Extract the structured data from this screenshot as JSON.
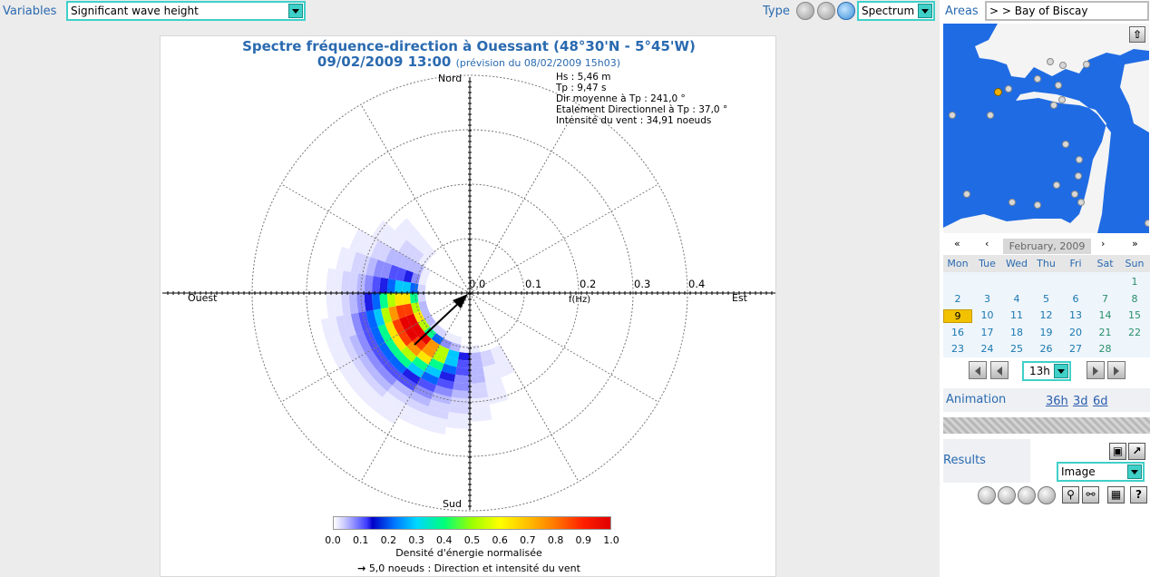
{
  "header": {
    "variables_label": "Variables",
    "variables_value": "Significant wave height",
    "type_label": "Type",
    "type_value": "Spectrum",
    "areas_label": "Areas",
    "areas_value": "> > Bay of Biscay"
  },
  "plot": {
    "title_line1": "Spectre fréquence-direction à Ouessant (48°30'N - 5°45'W)",
    "title_line2": "09/02/2009 13:00",
    "title_line2_small": "(prévision du 08/02/2009 15h03)",
    "stats": [
      "Hs : 5,46 m",
      "Tp : 9,47 s",
      "Dir moyenne à Tp : 241,0 °",
      "Etalement Directionnel à Tp : 37,0 °",
      "Intensité du vent : 34,91 noeuds"
    ],
    "north": "Nord",
    "south": "Sud",
    "west": "Ouest",
    "east": "Est",
    "freq_labels": [
      "0.0",
      "0.1",
      "0.2",
      "0.3",
      "0.4"
    ],
    "freq_axis_label": "f(Hz)",
    "legend_ticks": [
      "0.0",
      "0.1",
      "0.2",
      "0.3",
      "0.4",
      "0.5",
      "0.6",
      "0.7",
      "0.8",
      "0.9",
      "1.0"
    ],
    "legend_title": "Densité d'énergie normalisée",
    "wind_caption": "5,0 noeuds : Direction et intensité du vent",
    "colors": {
      "title": "#2a6ab0",
      "accent": "#3fd0c8"
    }
  },
  "calendar": {
    "nav": [
      "«",
      "‹",
      "›",
      "»"
    ],
    "month": "February, 2009",
    "weekdays": [
      "Mon",
      "Tue",
      "Wed",
      "Thu",
      "Fri",
      "Sat",
      "Sun"
    ],
    "weeks": [
      [
        "",
        "",
        "",
        "",
        "",
        "",
        "1"
      ],
      [
        "2",
        "3",
        "4",
        "5",
        "6",
        "7",
        "8"
      ],
      [
        "9",
        "10",
        "11",
        "12",
        "13",
        "14",
        "15"
      ],
      [
        "16",
        "17",
        "18",
        "19",
        "20",
        "21",
        "22"
      ],
      [
        "23",
        "24",
        "25",
        "26",
        "27",
        "28",
        ""
      ]
    ],
    "selected_day": "9",
    "hour": "13h"
  },
  "animation": {
    "label": "Animation",
    "links": [
      "36h",
      "3d",
      "6d"
    ]
  },
  "results": {
    "label": "Results",
    "format": "Image"
  }
}
